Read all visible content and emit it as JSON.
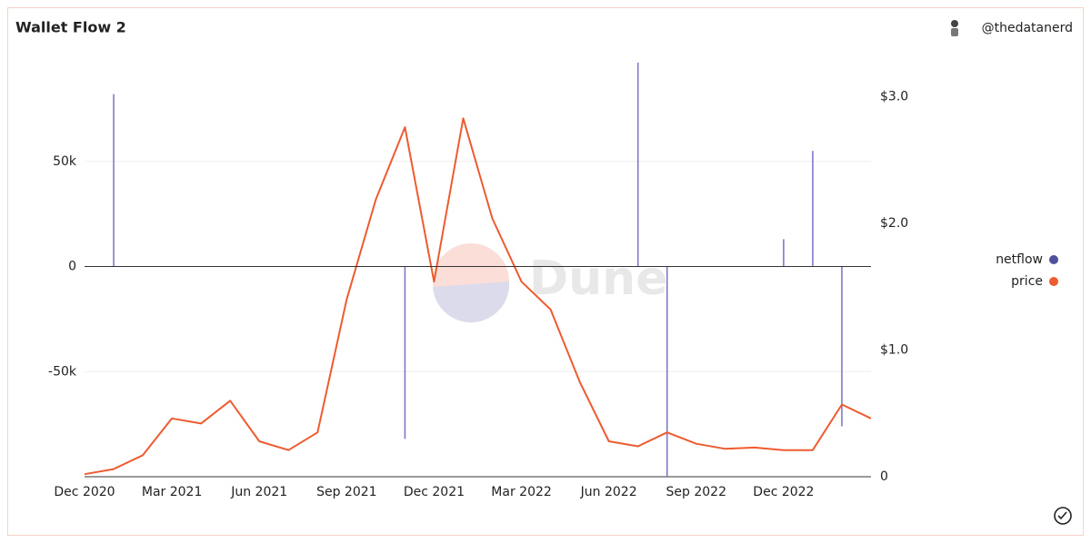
{
  "chart_data": {
    "type": "combo",
    "title": "Wallet Flow 2",
    "author": "@thedatanerd",
    "watermark": "Dune",
    "categories": [
      "Dec 2020",
      null,
      null,
      "Mar 2021",
      null,
      null,
      "Jun 2021",
      null,
      null,
      "Sep 2021",
      null,
      null,
      "Dec 2021",
      null,
      null,
      "Mar 2022",
      null,
      null,
      "Jun 2022",
      null,
      null,
      "Sep 2022",
      null,
      null,
      "Dec 2022",
      null,
      null,
      null
    ],
    "series": [
      {
        "name": "netflow",
        "type": "bar",
        "color": "#7f7ac8",
        "legend_color": "#4f4f9c",
        "values": [
          null,
          82000,
          null,
          null,
          null,
          null,
          null,
          null,
          null,
          null,
          null,
          -82000,
          null,
          null,
          null,
          null,
          null,
          null,
          null,
          97000,
          -100000,
          null,
          null,
          null,
          13000,
          55000,
          -76000,
          null
        ]
      },
      {
        "name": "price",
        "type": "line",
        "axis": "y2",
        "color": "#ee5b30",
        "legend_color": "#ee5b30",
        "values": [
          0.02,
          0.06,
          0.17,
          0.46,
          0.42,
          0.6,
          0.28,
          0.21,
          0.35,
          1.4,
          2.19,
          2.76,
          1.54,
          2.83,
          2.04,
          1.54,
          1.32,
          0.75,
          0.28,
          0.24,
          0.35,
          0.26,
          0.22,
          0.23,
          0.21,
          0.21,
          0.57,
          0.46
        ]
      }
    ],
    "ylim": [
      -100000,
      100000
    ],
    "yticks": [
      {
        "value": -50000,
        "label": "-50k"
      },
      0,
      {
        "value": 50000,
        "label": "50k"
      }
    ],
    "y2lim": [
      0,
      3.32
    ],
    "y2ticks": [
      0,
      {
        "value": 1,
        "label": "$1.0"
      },
      {
        "value": 2,
        "label": "$2.0"
      },
      {
        "value": 3,
        "label": "$3.0"
      }
    ],
    "grid": true,
    "legend": "right"
  }
}
